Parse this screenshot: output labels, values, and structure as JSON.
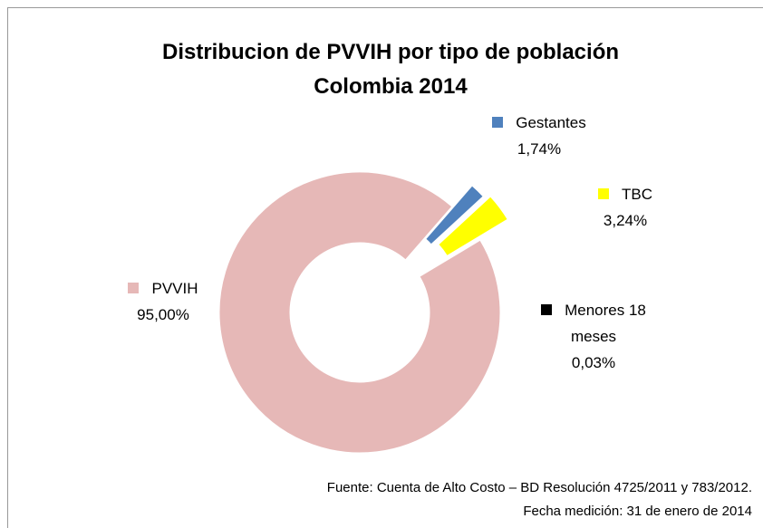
{
  "chart_data": {
    "type": "pie",
    "title": [
      "Distribucion de PVVIH por tipo de población",
      "Colombia 2014"
    ],
    "donut": true,
    "series": [
      {
        "name": "Gestantes",
        "color": "#4f81bd",
        "values": [
          1.74
        ],
        "value_labels": [
          "1,74%"
        ]
      },
      {
        "name": "TBC",
        "color": "#ffff00",
        "values": [
          3.24
        ],
        "value_labels": [
          "3,24%"
        ]
      },
      {
        "name": "Menores 18 meses",
        "color": "#000000",
        "values": [
          0.03
        ],
        "value_labels": [
          "0,03%"
        ]
      },
      {
        "name": "PVVIH",
        "color": "#e6b8b7",
        "values": [
          95.0
        ],
        "value_labels": [
          "95,00%"
        ]
      }
    ],
    "annotations": [
      "Fuente: Cuenta de Alto Costo – BD Resolución 4725/2011 y 783/2012.",
      "Fecha medición: 31 de enero de 2014"
    ]
  }
}
